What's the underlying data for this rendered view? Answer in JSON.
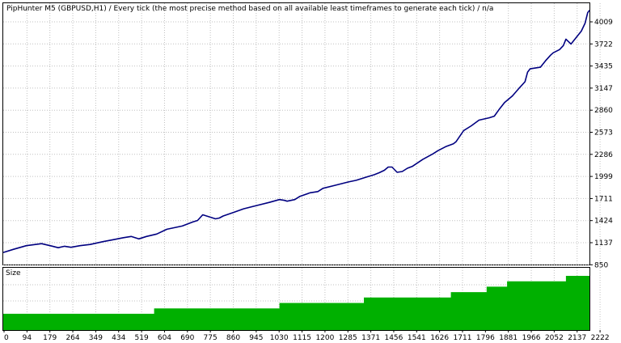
{
  "chart_data": [
    {
      "type": "line",
      "title": "PipHunter M5 (GBPUSD,H1) / Every tick (the most precise method based on all available least timeframes to generate each tick) / n/a",
      "xlabel": "",
      "ylabel": "",
      "xlim": [
        0,
        2292
      ],
      "ylim": [
        850,
        4108
      ],
      "y_ticks": [
        "4009",
        "3722",
        "3435",
        "3147",
        "2860",
        "2573",
        "2286",
        "1999",
        "1711",
        "1424",
        "1137",
        "850"
      ],
      "grid": true,
      "legend": "none",
      "colors": {
        "line": "#000080",
        "grid": "#c0c0c0",
        "frame": "#000000"
      },
      "series": [
        {
          "x": [
            0,
            40,
            90,
            150,
            190,
            215,
            240,
            265,
            300,
            340,
            390,
            430,
            470,
            500,
            530,
            560,
            600,
            640,
            700,
            740,
            760,
            780,
            800,
            830,
            845,
            860,
            900,
            940,
            990,
            1040,
            1080,
            1100,
            1110,
            1140,
            1160,
            1200,
            1230,
            1250,
            1300,
            1350,
            1380,
            1420,
            1450,
            1470,
            1490,
            1505,
            1520,
            1540,
            1560,
            1580,
            1600,
            1640,
            1680,
            1700,
            1730,
            1760,
            1770,
            1800,
            1830,
            1860,
            1900,
            1920,
            1940,
            1960,
            1990,
            2020,
            2040,
            2050,
            2060,
            2080,
            2100,
            2120,
            2140,
            2150,
            2175,
            2190,
            2200,
            2220,
            2240,
            2260,
            2275,
            2285,
            2292
          ],
          "y": [
            1000,
            1040,
            1085,
            1110,
            1080,
            1060,
            1078,
            1065,
            1085,
            1100,
            1135,
            1160,
            1185,
            1200,
            1170,
            1200,
            1230,
            1290,
            1330,
            1380,
            1400,
            1470,
            1450,
            1420,
            1430,
            1455,
            1500,
            1545,
            1585,
            1625,
            1660,
            1650,
            1640,
            1660,
            1700,
            1745,
            1760,
            1800,
            1840,
            1880,
            1900,
            1940,
            1970,
            1995,
            2025,
            2065,
            2065,
            2000,
            2010,
            2050,
            2075,
            2160,
            2230,
            2270,
            2320,
            2355,
            2380,
            2520,
            2580,
            2650,
            2680,
            2700,
            2790,
            2870,
            2950,
            3060,
            3130,
            3250,
            3290,
            3300,
            3310,
            3390,
            3460,
            3490,
            3530,
            3580,
            3660,
            3600,
            3680,
            3760,
            3860,
            3990,
            4020
          ]
        }
      ]
    },
    {
      "type": "area",
      "title": "Size",
      "xlabel": "",
      "ylabel": "",
      "xlim": [
        0,
        2292
      ],
      "ylim": [
        0,
        1.15
      ],
      "x_ticks": [
        "0",
        "94",
        "179",
        "264",
        "349",
        "434",
        "519",
        "604",
        "690",
        "775",
        "860",
        "945",
        "1030",
        "1115",
        "1200",
        "1285",
        "1371",
        "1456",
        "1541",
        "1626",
        "1711",
        "1796",
        "1881",
        "1966",
        "2052",
        "2137",
        "2222"
      ],
      "grid": true,
      "legend": "none",
      "colors": {
        "fill": "#00b000",
        "grid": "#c0c0c0",
        "frame": "#000000"
      },
      "series": [
        {
          "x": [
            0,
            590,
            1080,
            1410,
            1750,
            1890,
            1970,
            2200,
            2292
          ],
          "y": [
            0.3,
            0.4,
            0.5,
            0.6,
            0.7,
            0.8,
            0.9,
            1.0,
            1.0
          ]
        }
      ]
    }
  ]
}
